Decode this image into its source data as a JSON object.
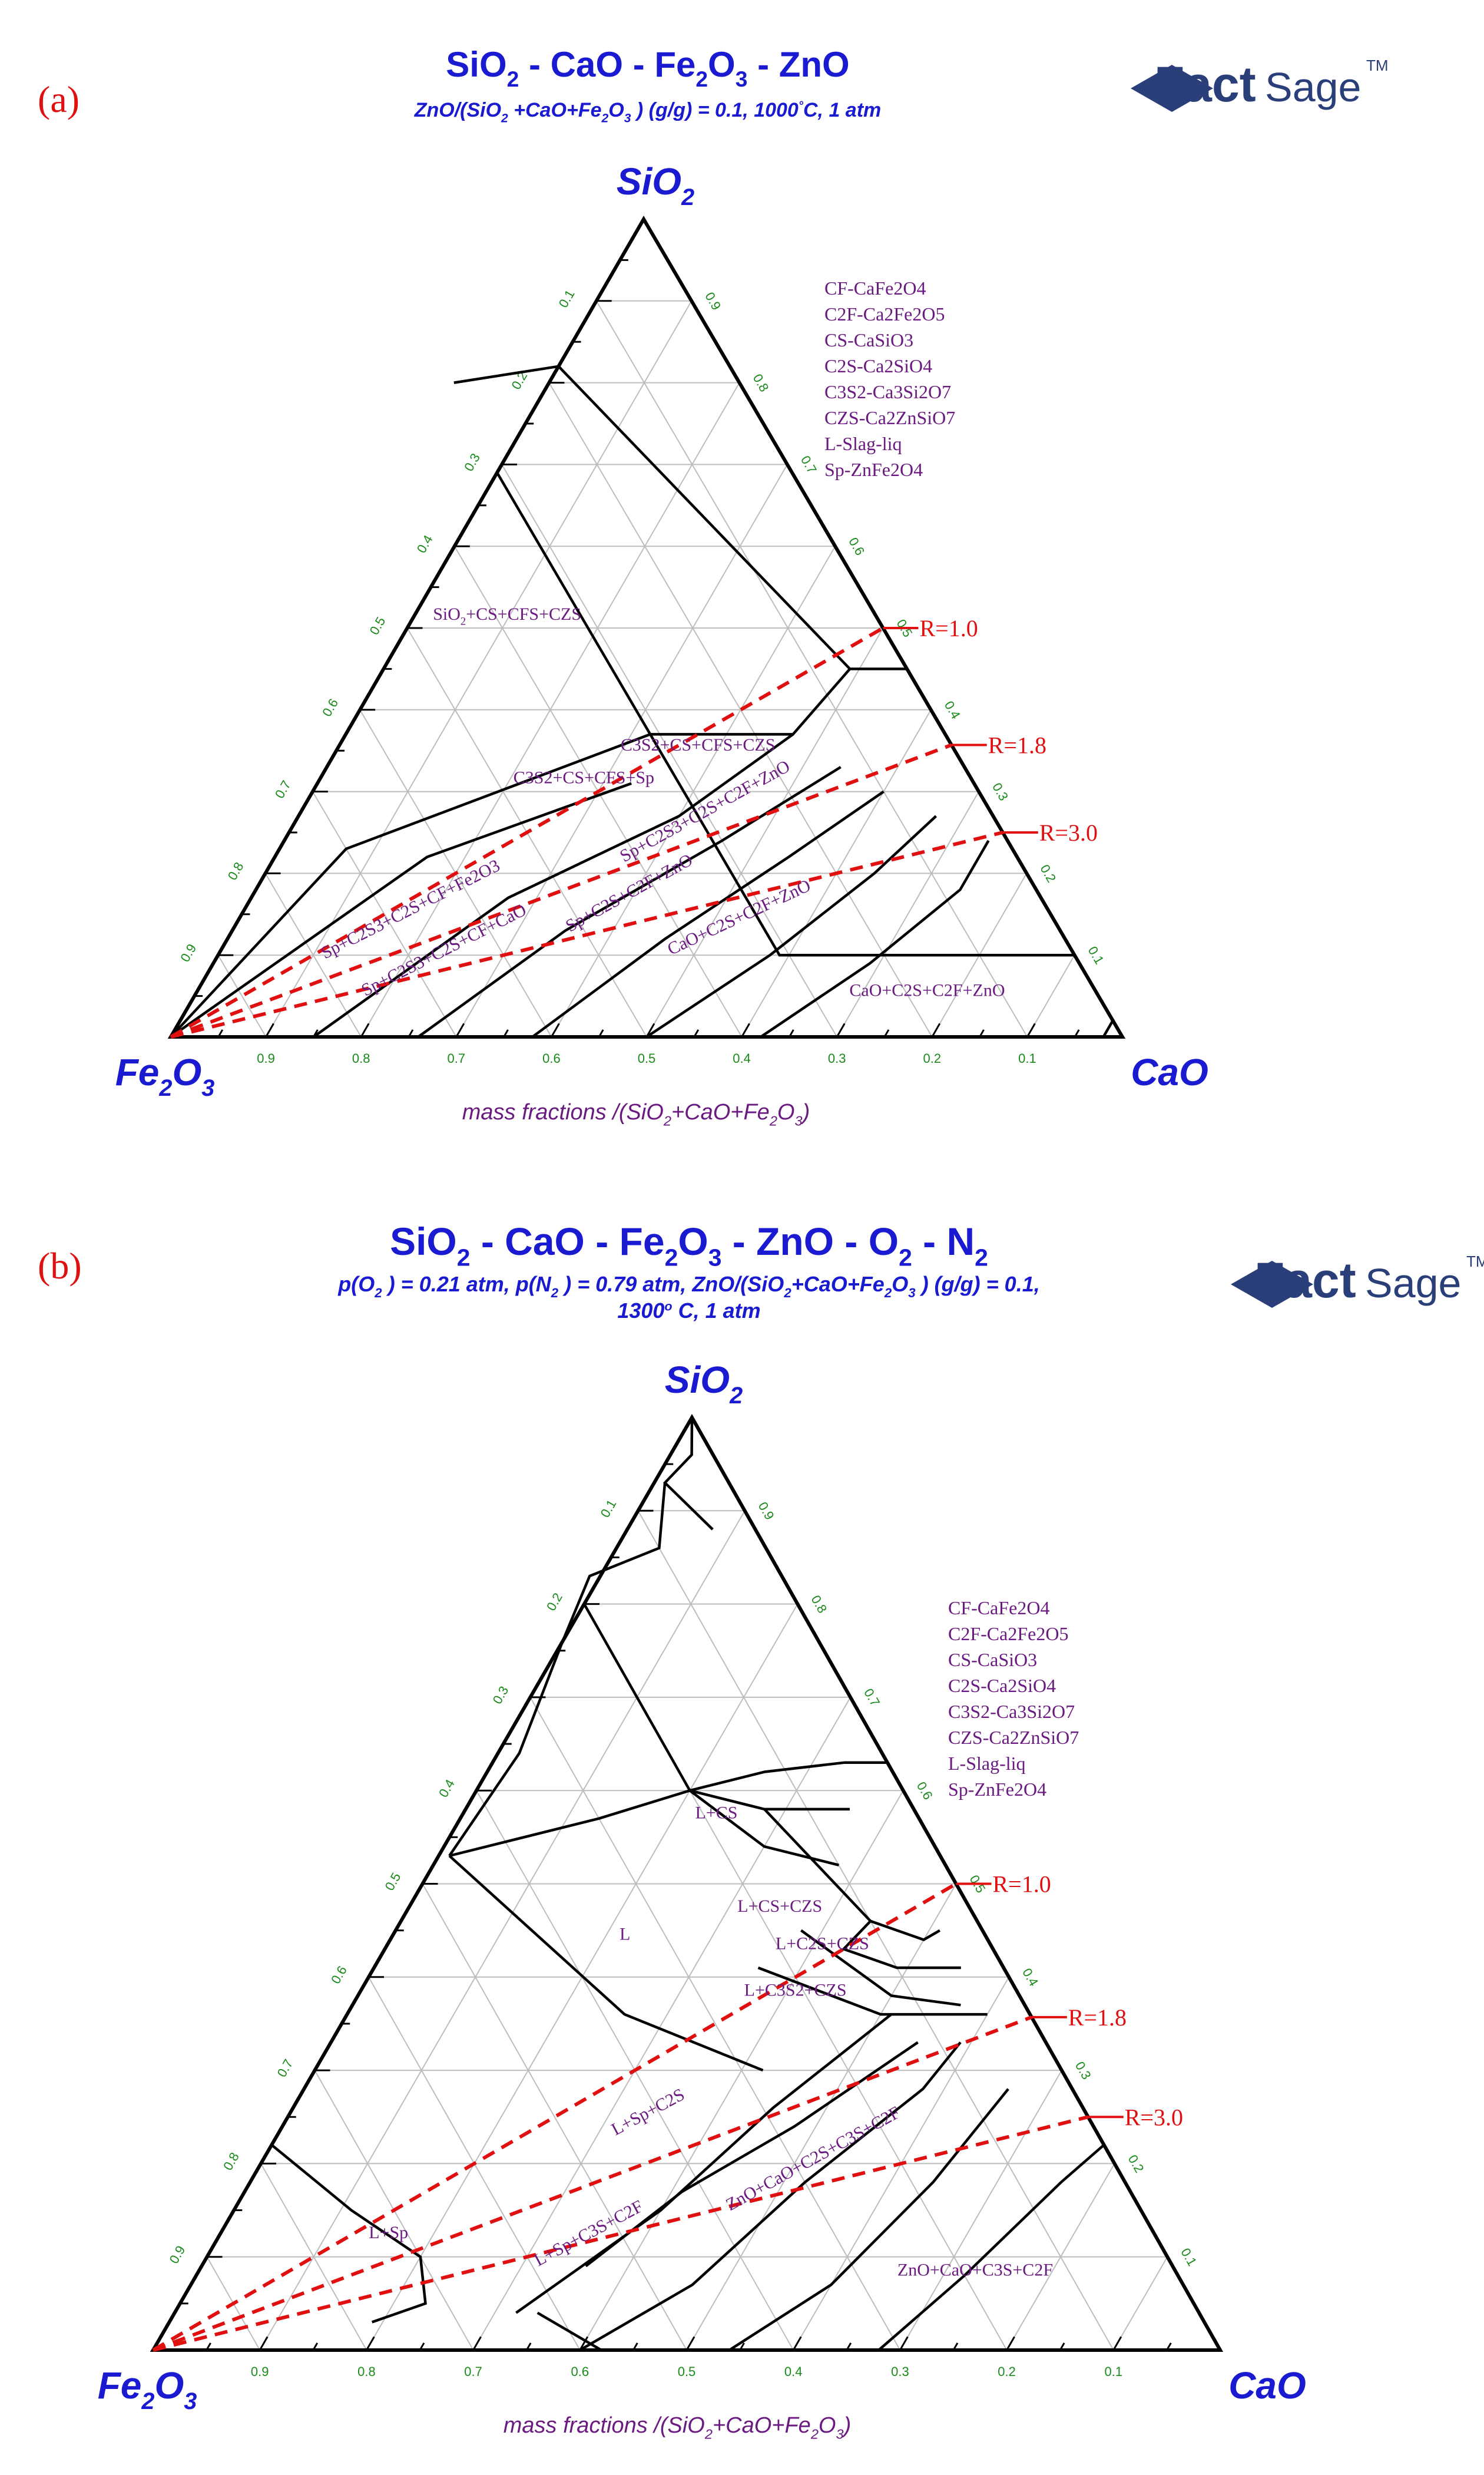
{
  "logo": {
    "fact": "Fact",
    "sage": "Sage",
    "tm": "TM"
  },
  "panels": [
    {
      "label": "(a)",
      "title": [
        "SiO",
        "2",
        " - CaO - Fe",
        "2",
        "O",
        "3",
        " - ZnO"
      ],
      "subtitle": [
        "ZnO/(SiO",
        "2",
        " +CaO+Fe",
        "2",
        "O",
        "3",
        " ) (g/g) = 0.1, 1000",
        "°",
        "C, 1 atm"
      ],
      "subtitle2": null,
      "vertices": {
        "top": [
          "SiO",
          "2"
        ],
        "left": [
          "Fe",
          "2",
          "O",
          "3"
        ],
        "right": "CaO"
      },
      "axis_label": [
        "mass fractions /(SiO",
        "2",
        "+CaO+Fe",
        "2",
        "O",
        "3",
        ")"
      ],
      "ticks": [
        "0.9",
        "0.8",
        "0.7",
        "0.6",
        "0.5",
        "0.4",
        "0.3",
        "0.2",
        "0.1"
      ],
      "legend": [
        "CF-CaFe2O4",
        "C2F-Ca2Fe2O5",
        "CS-CaSiO3",
        "C2S-Ca2SiO4",
        "C3S2-Ca3Si2O7",
        "CZS-Ca2ZnSiO7",
        "L-Slag-liq",
        "Sp-ZnFe2O4"
      ],
      "regions": [
        {
          "text": [
            "SiO",
            "2",
            "+CS+CFS+CZS"
          ],
          "a": 0.39,
          "b": 0.51
        },
        {
          "text": "C3S2+CS+CFS+CZS",
          "a": 0.27,
          "b": 0.35
        },
        {
          "text": "C3S2+CS+CFS+Sp",
          "a": 0.41,
          "b": 0.31
        },
        {
          "text": "Sp+C2S3+C2S+C2F+ZnO",
          "a": 0.3,
          "b": 0.27,
          "rot": -29
        },
        {
          "text": "Sp+C2S3+C2S+CF+Fe2O3",
          "a": 0.67,
          "b": 0.15,
          "rot": -27
        },
        {
          "text": "Sp+C2S3+C2S+CF+CaO",
          "a": 0.66,
          "b": 0.1,
          "rot": -27
        },
        {
          "text": "Sp+C2S+C2F+ZnO",
          "a": 0.43,
          "b": 0.17,
          "rot": -29
        },
        {
          "text": "CaO+C2S+C2F+ZnO",
          "a": 0.33,
          "b": 0.14,
          "rot": -25
        },
        {
          "text": "CaO+C2S+C2F+ZnO",
          "a": 0.18,
          "b": 0.05
        }
      ],
      "r_lines": [
        {
          "label": "R=1.0",
          "b": 0.5
        },
        {
          "label": "R=1.8",
          "b": 0.357
        },
        {
          "label": "R=3.0",
          "b": 0.25
        }
      ]
    },
    {
      "label": "(b)",
      "title": [
        "SiO",
        "2",
        " - CaO - Fe",
        "2",
        "O",
        "3",
        " - ZnO - O",
        "2",
        " - N",
        "2"
      ],
      "subtitle": [
        "p(O",
        "2",
        " ) = 0.21 atm, p(N",
        "2",
        " ) = 0.79 atm, ZnO/(SiO",
        "2",
        "+CaO+Fe",
        "2",
        "O",
        "3",
        " ) (g/g) = 0.1,"
      ],
      "subtitle2": [
        "1300",
        "o",
        " C, 1 atm"
      ],
      "vertices": {
        "top": [
          "SiO",
          "2"
        ],
        "left": [
          "Fe",
          "2",
          "O",
          "3"
        ],
        "right": "CaO"
      },
      "axis_label": [
        "mass fractions /(SiO",
        "2",
        "+CaO+Fe",
        "2",
        "O",
        "3",
        ")"
      ],
      "ticks": [
        "0.9",
        "0.8",
        "0.7",
        "0.6",
        "0.5",
        "0.4",
        "0.3",
        "0.2",
        "0.1"
      ],
      "legend": [
        "CF-CaFe2O4",
        "C2F-Ca2Fe2O5",
        "CS-CaSiO3",
        "C2S-Ca2SiO4",
        "C3S2-Ca3Si2O7",
        "CZS-Ca2ZnSiO7",
        "L-Slag-liq",
        "Sp-ZnFe2O4"
      ],
      "regions": [
        {
          "text": "L+CS",
          "a": 0.19,
          "b": 0.57
        },
        {
          "text": "L+CS+CZS",
          "a": 0.18,
          "b": 0.47
        },
        {
          "text": "L+C2S+CZS",
          "a": 0.16,
          "b": 0.43
        },
        {
          "text": "L+C3S2+CZS",
          "a": 0.21,
          "b": 0.38
        },
        {
          "text": "L",
          "a": 0.34,
          "b": 0.44
        },
        {
          "text": "L+Sp+C2S",
          "a": 0.41,
          "b": 0.25,
          "rot": -28
        },
        {
          "text": "L+Sp",
          "a": 0.72,
          "b": 0.12
        },
        {
          "text": "L+Sp+C3S+C2F",
          "a": 0.53,
          "b": 0.12,
          "rot": -28
        },
        {
          "text": "ZnO+CaO+C2S+C3S+C2F",
          "a": 0.28,
          "b": 0.2,
          "rot": -29
        },
        {
          "text": "ZnO+CaO+C3S+C2F",
          "a": 0.19,
          "b": 0.08
        }
      ],
      "r_lines": [
        {
          "label": "R=1.0",
          "b": 0.5
        },
        {
          "label": "R=1.8",
          "b": 0.357
        },
        {
          "label": "R=3.0",
          "b": 0.25
        }
      ]
    }
  ]
}
